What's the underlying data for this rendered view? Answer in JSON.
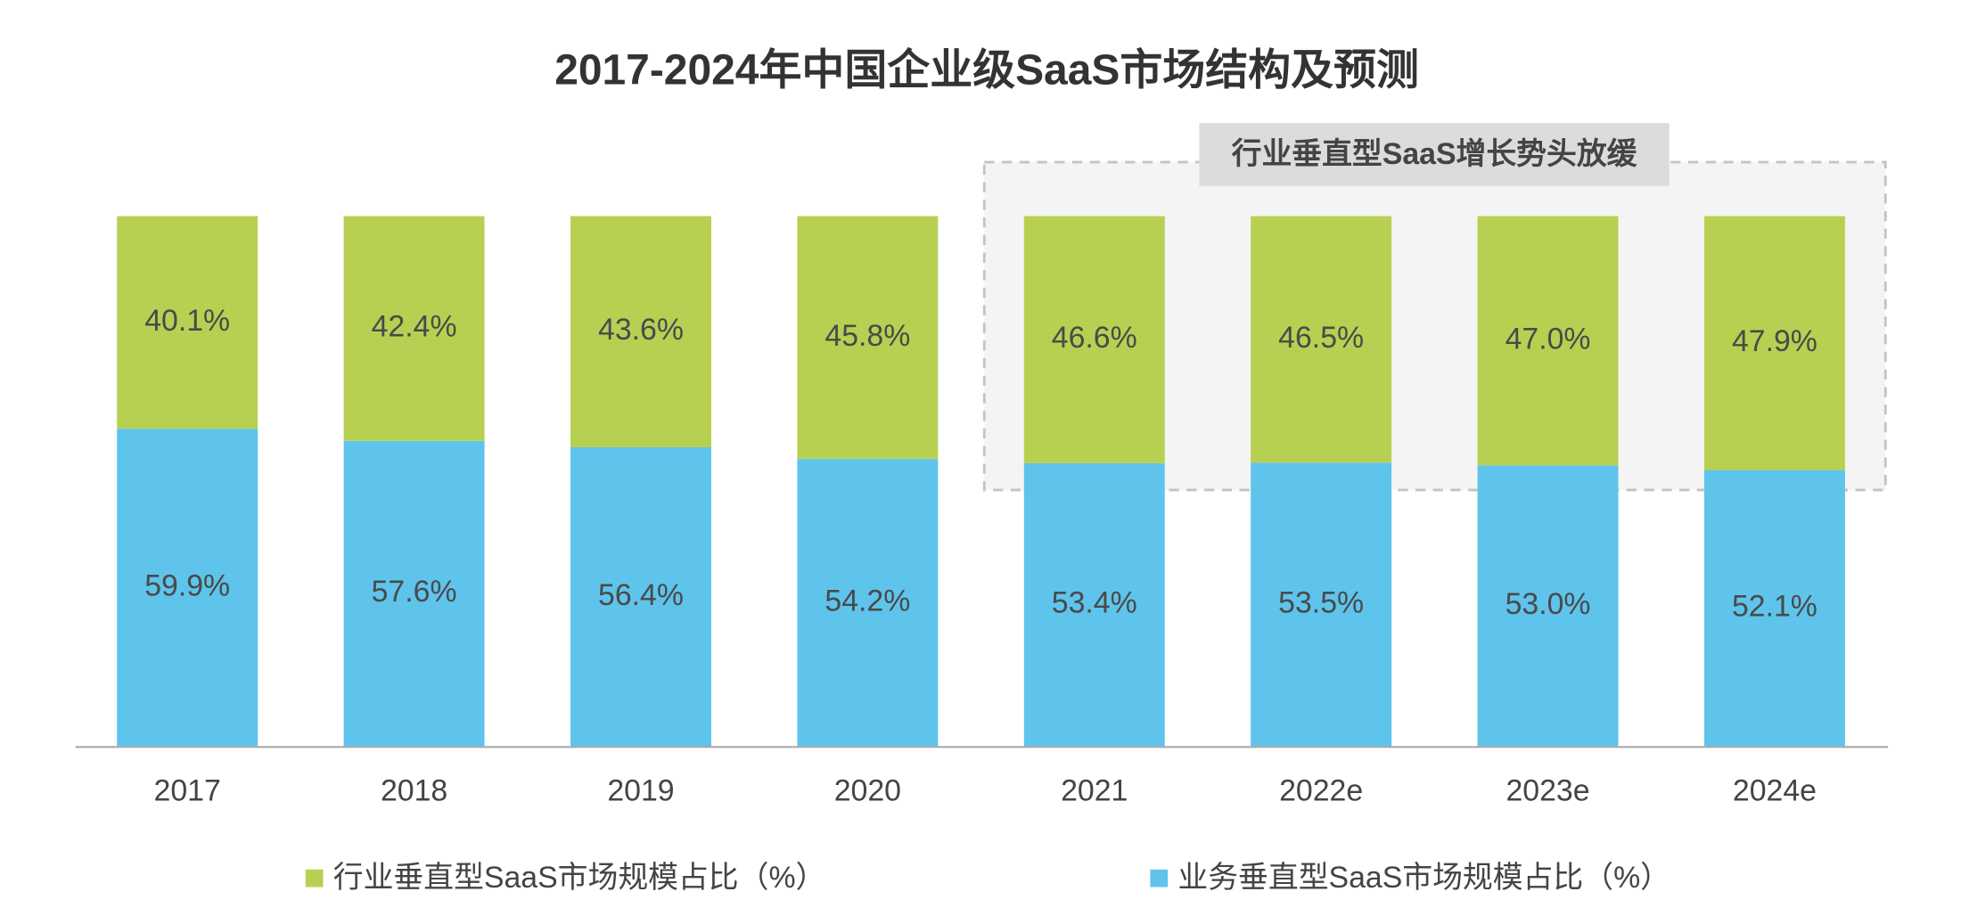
{
  "chart_data": {
    "type": "bar",
    "stacked": true,
    "title": "2017-2024年中国企业级SaaS市场结构及预测",
    "annotation": "行业垂直型SaaS增长势头放缓",
    "categories": [
      "2017",
      "2018",
      "2019",
      "2020",
      "2021",
      "2022e",
      "2023e",
      "2024e"
    ],
    "series": [
      {
        "name": "行业垂直型SaaS市场规模占比（%）",
        "color": "#b8d052",
        "values": [
          40.1,
          42.4,
          43.6,
          45.8,
          46.6,
          46.5,
          47.0,
          47.9
        ],
        "value_labels": [
          "40.1%",
          "42.4%",
          "43.6%",
          "45.8%",
          "46.6%",
          "46.5%",
          "47.0%",
          "47.9%"
        ]
      },
      {
        "name": "业务垂直型SaaS市场规模占比（%）",
        "color": "#5ec4ec",
        "values": [
          59.9,
          57.6,
          56.4,
          54.2,
          53.4,
          53.5,
          53.0,
          52.1
        ],
        "value_labels": [
          "59.9%",
          "57.6%",
          "56.4%",
          "54.2%",
          "53.4%",
          "53.5%",
          "53.0%",
          "52.1%"
        ]
      }
    ],
    "ylim": [
      0,
      100
    ]
  }
}
